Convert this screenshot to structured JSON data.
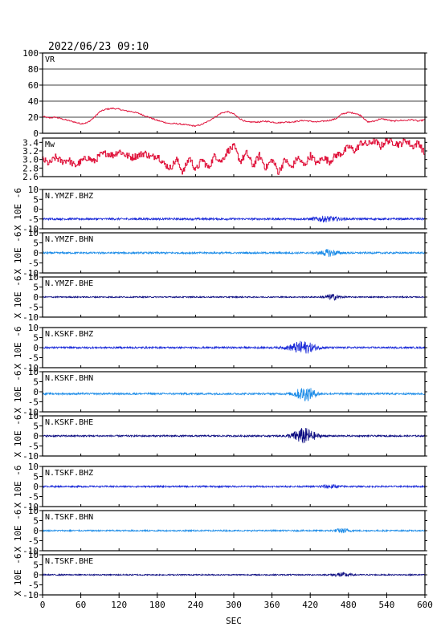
{
  "title": "2022/06/23 09:10",
  "xlabel": "SEC",
  "x_ticks": [
    0,
    60,
    120,
    180,
    240,
    300,
    360,
    420,
    480,
    540,
    600
  ],
  "colors": {
    "vr": "#e0143c",
    "mw": "#e0143c",
    "dark_blue": "#0a0a80",
    "blue": "#1a2ad8",
    "light_blue": "#1c8ce8",
    "axes": "#000000"
  },
  "chart_data": [
    {
      "type": "line",
      "name": "vr-panel",
      "label": "VR",
      "xlim": [
        0,
        600
      ],
      "ylim": [
        0,
        100
      ],
      "y_ticks": [
        0,
        20,
        40,
        60,
        80,
        100
      ],
      "grid": true,
      "series": [
        {
          "color": "#e0143c",
          "points": [
            [
              0,
              21
            ],
            [
              10,
              19
            ],
            [
              20,
              20
            ],
            [
              30,
              18
            ],
            [
              40,
              16
            ],
            [
              50,
              14
            ],
            [
              60,
              12
            ],
            [
              70,
              13
            ],
            [
              80,
              19
            ],
            [
              90,
              27
            ],
            [
              100,
              30
            ],
            [
              110,
              31
            ],
            [
              120,
              30
            ],
            [
              130,
              28
            ],
            [
              140,
              27
            ],
            [
              150,
              25
            ],
            [
              160,
              22
            ],
            [
              170,
              19
            ],
            [
              180,
              16
            ],
            [
              190,
              14
            ],
            [
              200,
              12
            ],
            [
              210,
              12
            ],
            [
              220,
              11
            ],
            [
              230,
              10
            ],
            [
              240,
              9
            ],
            [
              250,
              11
            ],
            [
              260,
              15
            ],
            [
              270,
              20
            ],
            [
              280,
              25
            ],
            [
              290,
              27
            ],
            [
              300,
              24
            ],
            [
              310,
              18
            ],
            [
              320,
              14
            ],
            [
              330,
              14
            ],
            [
              340,
              14
            ],
            [
              350,
              15
            ],
            [
              360,
              14
            ],
            [
              370,
              13
            ],
            [
              380,
              14
            ],
            [
              390,
              14
            ],
            [
              400,
              15
            ],
            [
              410,
              16
            ],
            [
              420,
              15
            ],
            [
              430,
              14
            ],
            [
              440,
              15
            ],
            [
              450,
              16
            ],
            [
              460,
              18
            ],
            [
              470,
              24
            ],
            [
              480,
              26
            ],
            [
              490,
              25
            ],
            [
              500,
              22
            ],
            [
              510,
              14
            ],
            [
              520,
              15
            ],
            [
              530,
              18
            ],
            [
              540,
              17
            ],
            [
              550,
              15
            ],
            [
              560,
              16
            ],
            [
              570,
              16
            ],
            [
              580,
              17
            ],
            [
              590,
              15
            ],
            [
              600,
              17
            ]
          ]
        }
      ]
    },
    {
      "type": "line",
      "name": "mw-panel",
      "label": "Mw",
      "xlim": [
        0,
        600
      ],
      "ylim": [
        2.6,
        3.5
      ],
      "y_ticks": [
        2.6,
        2.8,
        3.0,
        3.2,
        3.4
      ],
      "grid": false,
      "series": [
        {
          "color": "#e0143c",
          "points": [
            [
              0,
              3.0
            ],
            [
              10,
              2.9
            ],
            [
              20,
              3.05
            ],
            [
              30,
              2.95
            ],
            [
              40,
              3.0
            ],
            [
              50,
              2.85
            ],
            [
              60,
              2.95
            ],
            [
              70,
              3.05
            ],
            [
              80,
              2.95
            ],
            [
              90,
              3.1
            ],
            [
              100,
              3.15
            ],
            [
              110,
              3.1
            ],
            [
              120,
              3.2
            ],
            [
              130,
              3.1
            ],
            [
              140,
              3.05
            ],
            [
              150,
              3.1
            ],
            [
              160,
              3.15
            ],
            [
              170,
              3.05
            ],
            [
              180,
              3.1
            ],
            [
              190,
              2.9
            ],
            [
              200,
              2.8
            ],
            [
              210,
              3.0
            ],
            [
              220,
              2.7
            ],
            [
              230,
              3.05
            ],
            [
              240,
              2.75
            ],
            [
              250,
              3.0
            ],
            [
              260,
              2.8
            ],
            [
              270,
              3.1
            ],
            [
              280,
              2.95
            ],
            [
              290,
              3.2
            ],
            [
              300,
              3.3
            ],
            [
              310,
              2.95
            ],
            [
              320,
              3.15
            ],
            [
              330,
              2.85
            ],
            [
              340,
              3.1
            ],
            [
              350,
              2.8
            ],
            [
              360,
              3.0
            ],
            [
              370,
              2.7
            ],
            [
              380,
              3.0
            ],
            [
              390,
              2.8
            ],
            [
              400,
              3.05
            ],
            [
              410,
              2.85
            ],
            [
              420,
              3.1
            ],
            [
              430,
              2.9
            ],
            [
              440,
              3.05
            ],
            [
              450,
              2.95
            ],
            [
              460,
              3.1
            ],
            [
              470,
              3.15
            ],
            [
              480,
              3.3
            ],
            [
              490,
              3.2
            ],
            [
              500,
              3.4
            ],
            [
              510,
              3.35
            ],
            [
              520,
              3.45
            ],
            [
              530,
              3.3
            ],
            [
              540,
              3.45
            ],
            [
              550,
              3.4
            ],
            [
              560,
              3.35
            ],
            [
              570,
              3.45
            ],
            [
              580,
              3.3
            ],
            [
              590,
              3.4
            ],
            [
              600,
              3.1
            ]
          ]
        }
      ]
    },
    {
      "type": "line",
      "name": "waveform-ymzf-bhz",
      "label": "N.YMZF.BHZ",
      "ylabel": "X 10E -6",
      "xlim": [
        0,
        600
      ],
      "ylim": [
        -10,
        10
      ],
      "y_ticks": [
        -10,
        -5,
        0,
        5,
        10
      ],
      "color": "#1a2ad8",
      "baseline": -5,
      "noise": 0.5,
      "bursts": [
        [
          445,
          20,
          1.2
        ]
      ]
    },
    {
      "type": "line",
      "name": "waveform-ymzf-bhn",
      "label": "N.YMZF.BHN",
      "ylabel": "X 10E -6",
      "xlim": [
        0,
        600
      ],
      "ylim": [
        -10,
        10
      ],
      "y_ticks": [
        -10,
        -5,
        0,
        5,
        10
      ],
      "color": "#1c8ce8",
      "baseline": 0,
      "noise": 0.45,
      "bursts": [
        [
          450,
          14,
          1.6
        ]
      ]
    },
    {
      "type": "line",
      "name": "waveform-ymzf-bhe",
      "label": "N.YMZF.BHE",
      "ylabel": "X 10E -6",
      "xlim": [
        0,
        600
      ],
      "ylim": [
        -10,
        10
      ],
      "y_ticks": [
        -10,
        -5,
        0,
        5,
        10
      ],
      "color": "#0a0a80",
      "baseline": 0,
      "noise": 0.3,
      "bursts": [
        [
          455,
          12,
          1.4
        ]
      ]
    },
    {
      "type": "line",
      "name": "waveform-kskf-bhz",
      "label": "N.KSKF.BHZ",
      "ylabel": "X 10E -6",
      "xlim": [
        0,
        600
      ],
      "ylim": [
        -10,
        10
      ],
      "y_ticks": [
        -10,
        -5,
        0,
        5,
        10
      ],
      "color": "#1a2ad8",
      "baseline": 0,
      "noise": 0.45,
      "bursts": [
        [
          408,
          20,
          3.0
        ]
      ]
    },
    {
      "type": "line",
      "name": "waveform-kskf-bhn",
      "label": "N.KSKF.BHN",
      "ylabel": "X 10E -6",
      "xlim": [
        0,
        600
      ],
      "ylim": [
        -10,
        10
      ],
      "y_ticks": [
        -10,
        -5,
        0,
        5,
        10
      ],
      "color": "#1c8ce8",
      "baseline": -1,
      "noise": 0.45,
      "bursts": [
        [
          412,
          16,
          3.4
        ]
      ]
    },
    {
      "type": "line",
      "name": "waveform-kskf-bhe",
      "label": "N.KSKF.BHE",
      "ylabel": "X 10E -6",
      "xlim": [
        0,
        600
      ],
      "ylim": [
        -10,
        10
      ],
      "y_ticks": [
        -10,
        -5,
        0,
        5,
        10
      ],
      "color": "#0a0a80",
      "baseline": 0,
      "noise": 0.4,
      "bursts": [
        [
          410,
          18,
          3.8
        ]
      ]
    },
    {
      "type": "line",
      "name": "waveform-tskf-bhz",
      "label": "N.TSKF.BHZ",
      "ylabel": "X 10E -6",
      "xlim": [
        0,
        600
      ],
      "ylim": [
        -10,
        10
      ],
      "y_ticks": [
        -10,
        -5,
        0,
        5,
        10
      ],
      "color": "#1a2ad8",
      "baseline": 0,
      "noise": 0.4,
      "bursts": [
        [
          450,
          14,
          0.8
        ]
      ]
    },
    {
      "type": "line",
      "name": "waveform-tskf-bhn",
      "label": "N.TSKF.BHN",
      "ylabel": "X 10E -6",
      "xlim": [
        0,
        600
      ],
      "ylim": [
        -10,
        10
      ],
      "y_ticks": [
        -10,
        -5,
        0,
        5,
        10
      ],
      "color": "#1c8ce8",
      "baseline": 0,
      "noise": 0.35,
      "bursts": [
        [
          470,
          12,
          1.0
        ]
      ]
    },
    {
      "type": "line",
      "name": "waveform-tskf-bhe",
      "label": "N.TSKF.BHE",
      "ylabel": "X 10E -6",
      "xlim": [
        0,
        600
      ],
      "ylim": [
        -10,
        10
      ],
      "y_ticks": [
        -10,
        -5,
        0,
        5,
        10
      ],
      "color": "#0a0a80",
      "baseline": 0,
      "noise": 0.3,
      "bursts": [
        [
          470,
          14,
          1.0
        ]
      ]
    }
  ]
}
